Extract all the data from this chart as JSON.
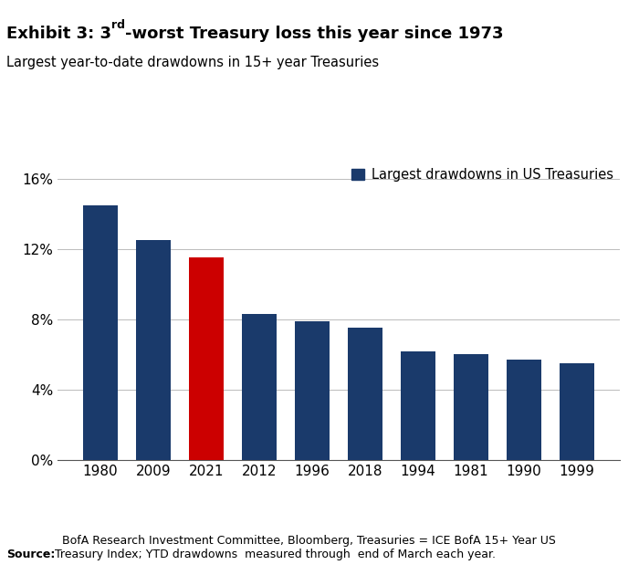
{
  "subtitle": "Largest year-to-date drawdowns in 15+ year Treasuries",
  "categories": [
    "1980",
    "2009",
    "2021",
    "2012",
    "1996",
    "2018",
    "1994",
    "1981",
    "1990",
    "1999"
  ],
  "values": [
    14.5,
    12.5,
    11.5,
    8.3,
    7.9,
    7.5,
    6.2,
    6.0,
    5.7,
    5.5
  ],
  "bar_colors": [
    "#1a3a6b",
    "#1a3a6b",
    "#cc0000",
    "#1a3a6b",
    "#1a3a6b",
    "#1a3a6b",
    "#1a3a6b",
    "#1a3a6b",
    "#1a3a6b",
    "#1a3a6b"
  ],
  "legend_label": "Largest drawdowns in US Treasuries",
  "legend_color": "#1a3a6b",
  "ylim": [
    0,
    17
  ],
  "yticks": [
    0,
    4,
    8,
    12,
    16
  ],
  "ytick_labels": [
    "0%",
    "4%",
    "8%",
    "12%",
    "16%"
  ],
  "source_bold": "Source:",
  "source_rest": "  BofA Research Investment Committee, Bloomberg, Treasuries = ICE BofA 15+ Year US\nTreasury Index; YTD drawdowns  measured through  end of March each year.",
  "background_color": "#ffffff",
  "grid_color": "#bbbbbb",
  "title_fontsize": 13,
  "subtitle_fontsize": 10.5,
  "tick_fontsize": 11,
  "source_fontsize": 9,
  "legend_fontsize": 10.5
}
